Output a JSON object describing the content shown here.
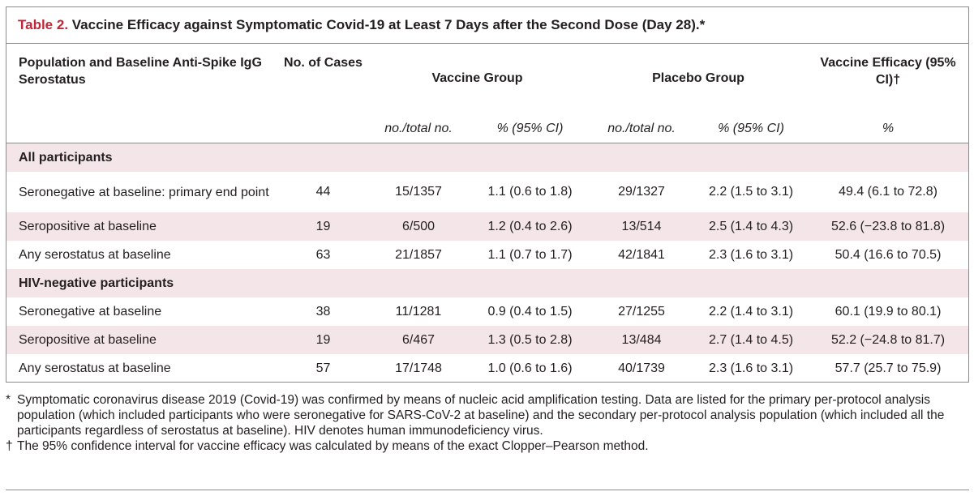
{
  "title": {
    "label": "Table 2.",
    "text": "Vaccine Efficacy against Symptomatic Covid-19 at Least 7 Days after the Second Dose (Day 28).*"
  },
  "header": {
    "col0": "Population and Baseline Anti-Spike IgG Serostatus",
    "col1": "No. of Cases",
    "vaccine_group": "Vaccine Group",
    "placebo_group": "Placebo Group",
    "efficacy": "Vaccine Efficacy (95% CI)†",
    "sub": {
      "vaccine_no": "no./total no.",
      "vaccine_pct": "% (95% CI)",
      "placebo_no": "no./total no.",
      "placebo_pct": "% (95% CI)",
      "efficacy_pct": "%"
    }
  },
  "sections": [
    {
      "title": "All participants",
      "rows": [
        {
          "population": "Seronegative at baseline: primary end point",
          "cases": "44",
          "vac_no": "15/1357",
          "vac_pct": "1.1 (0.6 to 1.8)",
          "pla_no": "29/1327",
          "pla_pct": "2.2 (1.5 to 3.1)",
          "efficacy": "49.4 (6.1 to 72.8)"
        },
        {
          "population": "Seropositive at baseline",
          "cases": "19",
          "vac_no": "6/500",
          "vac_pct": "1.2 (0.4 to 2.6)",
          "pla_no": "13/514",
          "pla_pct": "2.5 (1.4 to 4.3)",
          "efficacy": "52.6 (−23.8 to 81.8)"
        },
        {
          "population": "Any serostatus at baseline",
          "cases": "63",
          "vac_no": "21/1857",
          "vac_pct": "1.1 (0.7 to 1.7)",
          "pla_no": "42/1841",
          "pla_pct": "2.3 (1.6 to 3.1)",
          "efficacy": "50.4 (16.6 to 70.5)"
        }
      ]
    },
    {
      "title": "HIV-negative participants",
      "rows": [
        {
          "population": "Seronegative at baseline",
          "cases": "38",
          "vac_no": "11/1281",
          "vac_pct": "0.9 (0.4 to 1.5)",
          "pla_no": "27/1255",
          "pla_pct": "2.2 (1.4 to 3.1)",
          "efficacy": "60.1 (19.9 to 80.1)"
        },
        {
          "population": "Seropositive at baseline",
          "cases": "19",
          "vac_no": "6/467",
          "vac_pct": "1.3 (0.5 to 2.8)",
          "pla_no": "13/484",
          "pla_pct": "2.7 (1.4 to 4.5)",
          "efficacy": "52.2 (−24.8 to 81.7)"
        },
        {
          "population": "Any serostatus at baseline",
          "cases": "57",
          "vac_no": "17/1748",
          "vac_pct": "1.0 (0.6 to 1.6)",
          "pla_no": "40/1739",
          "pla_pct": "2.3 (1.6 to 3.1)",
          "efficacy": "57.7 (25.7 to 75.9)"
        }
      ]
    }
  ],
  "footnotes": [
    {
      "mark": "*",
      "text": "Symptomatic coronavirus disease 2019 (Covid-19) was confirmed by means of nucleic acid amplification testing. Data are listed for the primary per-protocol analysis population (which included participants who were seronegative for SARS-CoV-2 at baseline) and the secondary per-protocol analysis population (which included all the participants regardless of serostatus at baseline). HIV denotes human immunodeficiency virus."
    },
    {
      "mark": "†",
      "text": "The 95% confidence interval for vaccine efficacy was calculated by means of the exact Clopper–Pearson method."
    }
  ],
  "colors": {
    "accent": "#c0283a",
    "shade": "#f4e6e8",
    "rule": "#8a8a8a"
  }
}
